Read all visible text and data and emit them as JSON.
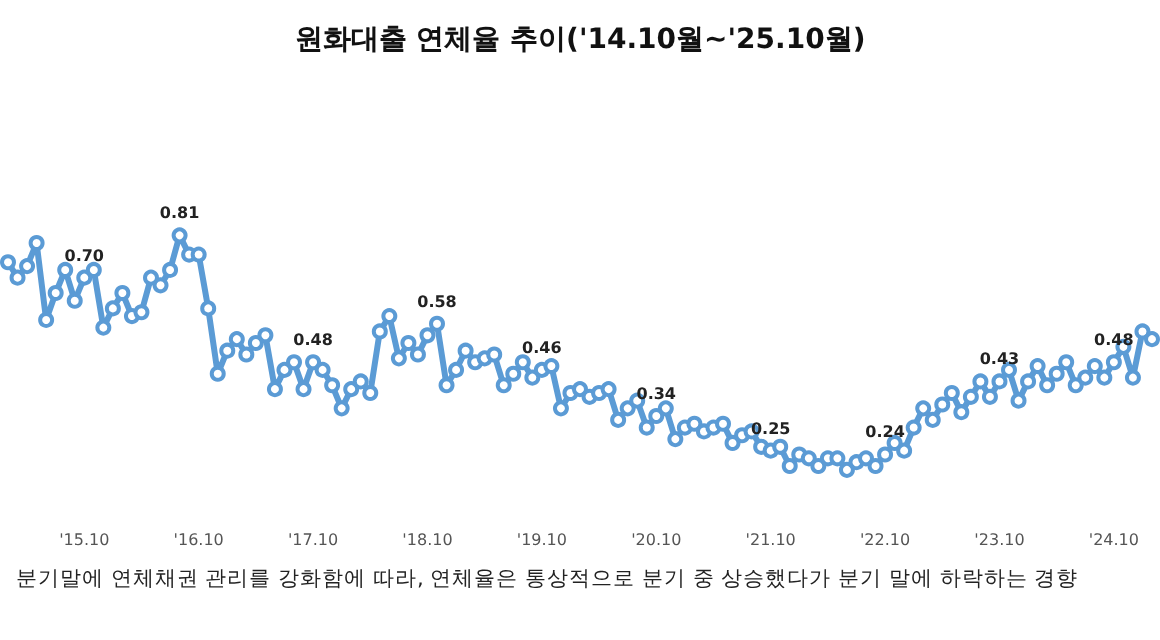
{
  "chart_data": {
    "type": "line",
    "title": "원화대출 연체율 추이('14.10월~'25.10월)",
    "annotations": [
      "분기말에 연체채권 관리를 강화함에 따라, 연체율은 통상적으로 분기 중 상승했다가 분기 말에 하락하는 경향"
    ],
    "categories": [
      null,
      null,
      null,
      null,
      null,
      null,
      null,
      null,
      "'15.10",
      null,
      null,
      null,
      null,
      null,
      null,
      null,
      null,
      null,
      null,
      null,
      "'16.10",
      null,
      null,
      null,
      null,
      null,
      null,
      null,
      null,
      null,
      null,
      null,
      "'17.10",
      null,
      null,
      null,
      null,
      null,
      null,
      null,
      null,
      null,
      null,
      null,
      "'18.10",
      null,
      null,
      null,
      null,
      null,
      null,
      null,
      null,
      null,
      null,
      null,
      "'19.10",
      null,
      null,
      null,
      null,
      null,
      null,
      null,
      null,
      null,
      null,
      null,
      "'20.10",
      null,
      null,
      null,
      null,
      null,
      null,
      null,
      null,
      null,
      null,
      null,
      "'21.10",
      null,
      null,
      null,
      null,
      null,
      null,
      null,
      null,
      null,
      null,
      null,
      "'22.10",
      null,
      null,
      null,
      null,
      null,
      null,
      null,
      null,
      null,
      null,
      null,
      "'23.10",
      null,
      null,
      null,
      null,
      null,
      null,
      null,
      null,
      null,
      null,
      null,
      "'24.10",
      null,
      null,
      null,
      null
    ],
    "series": [
      {
        "color": "#5b9bd5",
        "values": [
          0.74,
          0.7,
          0.73,
          0.79,
          0.59,
          0.66,
          0.72,
          0.64,
          0.7,
          0.72,
          0.57,
          0.62,
          0.66,
          0.6,
          0.61,
          0.7,
          0.68,
          0.72,
          0.81,
          0.76,
          0.76,
          0.62,
          0.45,
          0.51,
          0.54,
          0.5,
          0.53,
          0.55,
          0.41,
          0.46,
          0.48,
          0.41,
          0.48,
          0.46,
          0.42,
          0.36,
          0.41,
          0.43,
          0.4,
          0.56,
          0.6,
          0.49,
          0.53,
          0.5,
          0.55,
          0.58,
          0.42,
          0.46,
          0.51,
          0.48,
          0.49,
          0.5,
          0.42,
          0.45,
          0.48,
          0.44,
          0.46,
          0.47,
          0.36,
          0.4,
          0.41,
          0.39,
          0.4,
          0.41,
          0.33,
          0.36,
          0.38,
          0.31,
          0.34,
          0.36,
          0.28,
          0.31,
          0.32,
          0.3,
          0.31,
          0.32,
          0.27,
          0.29,
          0.3,
          0.26,
          0.25,
          0.26,
          0.21,
          0.24,
          0.23,
          0.21,
          0.23,
          0.23,
          0.2,
          0.22,
          0.23,
          0.21,
          0.24,
          0.27,
          0.25,
          0.31,
          0.36,
          0.33,
          0.37,
          0.4,
          0.35,
          0.39,
          0.43,
          0.39,
          0.43,
          0.46,
          0.38,
          0.43,
          0.47,
          0.42,
          0.45,
          0.48,
          0.42,
          0.44,
          0.47,
          0.44,
          0.48,
          0.52,
          0.44,
          0.56,
          0.54
        ],
        "value_labels": [
          null,
          null,
          null,
          null,
          null,
          null,
          null,
          null,
          "0.70",
          null,
          null,
          null,
          null,
          null,
          null,
          null,
          null,
          null,
          "0.81",
          null,
          null,
          null,
          null,
          null,
          null,
          null,
          null,
          null,
          null,
          null,
          null,
          null,
          "0.48",
          null,
          null,
          null,
          null,
          null,
          null,
          null,
          null,
          null,
          null,
          null,
          null,
          "0.58",
          null,
          null,
          null,
          null,
          null,
          null,
          null,
          null,
          null,
          null,
          "0.46",
          null,
          null,
          null,
          null,
          null,
          null,
          null,
          null,
          null,
          null,
          null,
          "0.34",
          null,
          null,
          null,
          null,
          null,
          null,
          null,
          null,
          null,
          null,
          null,
          "0.25",
          null,
          null,
          null,
          null,
          null,
          null,
          null,
          null,
          null,
          null,
          null,
          "0.24",
          null,
          null,
          null,
          null,
          null,
          null,
          null,
          null,
          null,
          null,
          null,
          "0.43",
          null,
          null,
          null,
          null,
          null,
          null,
          null,
          null,
          null,
          null,
          null,
          "0.48",
          null,
          null,
          null,
          null
        ]
      }
    ],
    "tick_labels": "x",
    "marker": "circle",
    "line_style": "solid",
    "grid": false
  }
}
